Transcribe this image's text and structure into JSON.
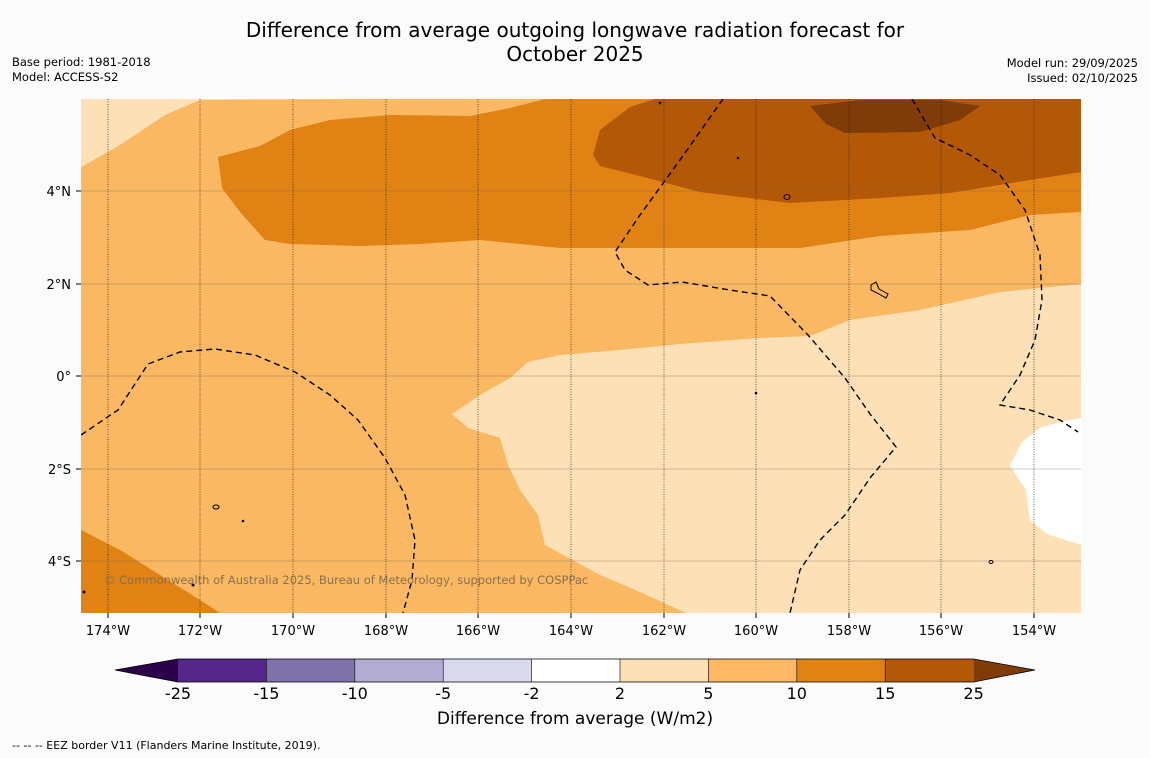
{
  "title": {
    "line1": "Difference from average outgoing longwave radiation forecast for",
    "line2": "October 2025"
  },
  "meta_left": {
    "base_period": "Base period: 1981-2018",
    "model": "Model: ACCESS-S2"
  },
  "meta_right": {
    "model_run": "Model run: 29/09/2025",
    "issued": "Issued: 02/10/2025"
  },
  "map": {
    "lon_labels": [
      "174°W",
      "172°W",
      "170°W",
      "168°W",
      "166°W",
      "164°W",
      "162°W",
      "160°W",
      "158°W",
      "156°W",
      "154°W"
    ],
    "lat_labels": [
      "4°N",
      "2°N",
      "0°",
      "2°S",
      "4°S"
    ],
    "copyright": "© Commonwealth of Australia 2025, Bureau of Meteorology, supported by COSPPac",
    "colors": {
      "c_2_5": "#fde0b6",
      "c_5_10": "#fab862",
      "c_10_15": "#e08214",
      "c_15_25": "#b35806",
      "c_gt25": "#7f3b08",
      "c_neutral": "#ffffff"
    }
  },
  "colorbar": {
    "tick_labels": [
      "-25",
      "-15",
      "-10",
      "-5",
      "-2",
      "2",
      "5",
      "10",
      "15",
      "25"
    ],
    "colors": [
      "#2d004b",
      "#542788",
      "#8073ac",
      "#b2abd2",
      "#d8daeb",
      "#ffffff",
      "#fee0b6",
      "#fdb863",
      "#e08214",
      "#b35806",
      "#7f3b08"
    ],
    "label": "Difference from average (W/m2)"
  },
  "footer": {
    "legend_text": "--  --  -- EEZ border V11 (Flanders Marine Institute, 2019)."
  }
}
